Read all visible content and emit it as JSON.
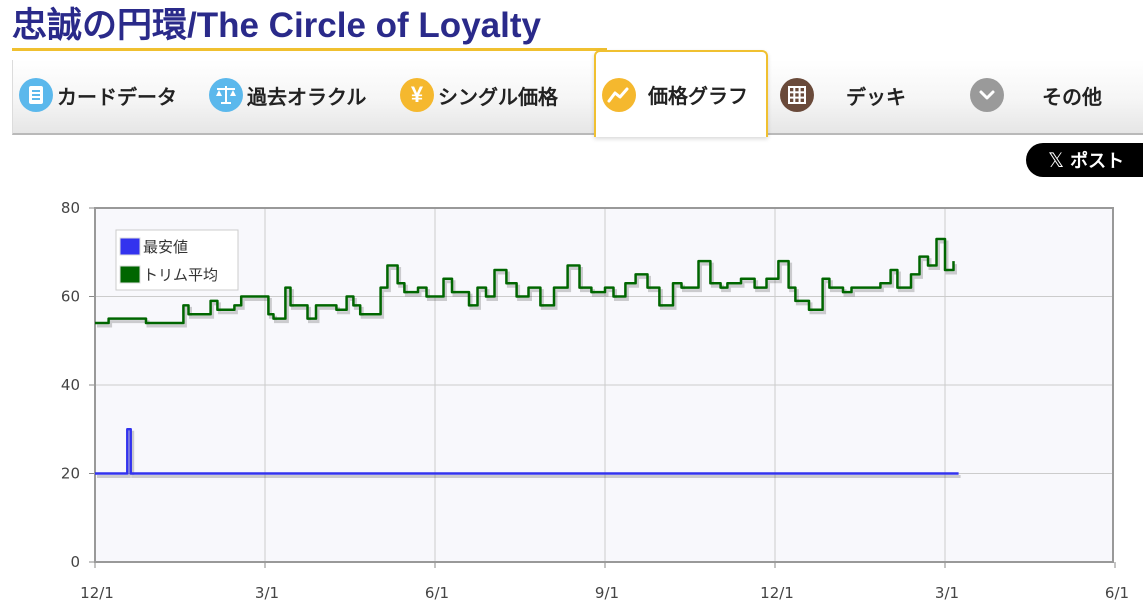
{
  "page": {
    "title": "忠誠の円環/The Circle of Loyalty"
  },
  "tabs": [
    {
      "label": "カードデータ",
      "icon": "card-data-icon",
      "color": "#5bb8ec"
    },
    {
      "label": "過去オラクル",
      "icon": "scales-icon",
      "color": "#5bb8ec"
    },
    {
      "label": "シングル価格",
      "icon": "yen-icon",
      "color": "#f5b82e"
    },
    {
      "label": "価格グラフ",
      "icon": "line-graph-icon",
      "color": "#f5b82e",
      "active": true
    },
    {
      "label": "デッキ",
      "icon": "grid-icon",
      "color": "#6a4a3a"
    },
    {
      "label": "その他",
      "icon": "chevron-down-icon",
      "color": "#9a9a9a"
    }
  ],
  "post_button": {
    "label": "ポスト",
    "icon": "x-logo-icon"
  },
  "chart_data": {
    "type": "line",
    "x_ticks": [
      "12/1",
      "3/1",
      "6/1",
      "9/1",
      "12/1",
      "3/1",
      "6/1"
    ],
    "y_ticks": [
      "0",
      "20",
      "40",
      "60",
      "80"
    ],
    "ylim": [
      0,
      80
    ],
    "grid": true,
    "legend_position": "top-left",
    "series": [
      {
        "name": "最安値",
        "color": "#3333ee",
        "x": [
          0,
          0.17,
          0.19,
          0.21,
          5.08
        ],
        "values": [
          20,
          20,
          30,
          20,
          20
        ]
      },
      {
        "name": "トリム平均",
        "color": "#006600",
        "x": [
          0,
          0.08,
          0.28,
          0.3,
          0.52,
          0.55,
          0.68,
          0.72,
          0.82,
          0.86,
          1.02,
          1.05,
          1.12,
          1.15,
          1.25,
          1.3,
          1.42,
          1.48,
          1.52,
          1.56,
          1.68,
          1.72,
          1.78,
          1.82,
          1.9,
          1.95,
          2.05,
          2.1,
          2.2,
          2.25,
          2.3,
          2.35,
          2.42,
          2.48,
          2.55,
          2.62,
          2.7,
          2.78,
          2.85,
          2.92,
          3.0,
          3.05,
          3.12,
          3.18,
          3.25,
          3.32,
          3.4,
          3.45,
          3.55,
          3.62,
          3.68,
          3.72,
          3.8,
          3.88,
          3.95,
          4.02,
          4.08,
          4.12,
          4.2,
          4.28,
          4.32,
          4.4,
          4.45,
          4.55,
          4.62,
          4.68,
          4.72,
          4.8,
          4.85,
          4.9,
          4.95,
          5.0,
          5.05
        ],
        "values": [
          54,
          55,
          55,
          54,
          58,
          56,
          59,
          57,
          58,
          60,
          56,
          55,
          62,
          58,
          55,
          58,
          57,
          60,
          58,
          56,
          62,
          67,
          63,
          61,
          62,
          60,
          64,
          61,
          58,
          62,
          60,
          66,
          63,
          60,
          62,
          58,
          62,
          67,
          62,
          61,
          62,
          60,
          63,
          65,
          62,
          58,
          63,
          62,
          68,
          63,
          62,
          63,
          64,
          62,
          64,
          68,
          62,
          59,
          57,
          64,
          62,
          61,
          62,
          62,
          63,
          66,
          62,
          65,
          69,
          67,
          73,
          66,
          68
        ]
      }
    ]
  }
}
